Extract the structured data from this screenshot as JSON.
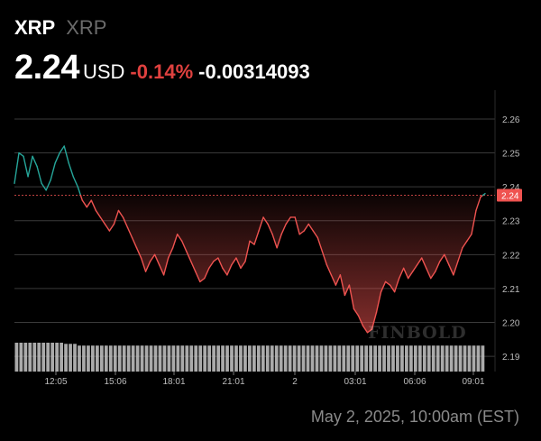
{
  "header": {
    "symbol": "XRP",
    "name": "XRP",
    "price": "2.24",
    "currency": "USD",
    "change_pct": "-0.14%",
    "change_abs": "-0.00314093"
  },
  "footer": {
    "timestamp": "May 2, 2025, 10:00am (EST)",
    "watermark": "FINBOLD"
  },
  "colors": {
    "up": "#26a69a",
    "down": "#ef5350",
    "grid": "#3a3a3a",
    "volume": "#c8c8c8"
  },
  "chart_data": {
    "type": "line",
    "x_ticks": [
      "12:05",
      "15:06",
      "18:01",
      "21:01",
      "2",
      "03:01",
      "06:06",
      "09:01"
    ],
    "y_ticks": [
      "2.26",
      "2.25",
      "2.24",
      "2.23",
      "2.22",
      "2.21",
      "2.20",
      "2.19"
    ],
    "ylim": [
      2.1855,
      2.2685
    ],
    "reference_value": 2.2375,
    "current_label": "2.24",
    "series": [
      {
        "values": [
          2.241,
          2.25,
          2.249,
          2.243,
          2.249,
          2.246,
          2.241,
          2.239,
          2.242,
          2.247,
          2.25,
          2.252,
          2.247,
          2.243,
          2.24,
          2.236,
          2.234,
          2.236,
          2.233,
          2.231,
          2.229,
          2.227,
          2.229,
          2.233,
          2.231,
          2.228,
          2.225,
          2.222,
          2.219,
          2.215,
          2.218,
          2.22,
          2.217,
          2.214,
          2.219,
          2.222,
          2.226,
          2.224,
          2.221,
          2.218,
          2.215,
          2.212,
          2.213,
          2.216,
          2.218,
          2.219,
          2.216,
          2.214,
          2.217,
          2.219,
          2.216,
          2.218,
          2.224,
          2.223,
          2.227,
          2.231,
          2.229,
          2.226,
          2.222,
          2.226,
          2.229,
          2.231,
          2.231,
          2.226,
          2.227,
          2.229,
          2.227,
          2.225,
          2.221,
          2.217,
          2.214,
          2.211,
          2.214,
          2.208,
          2.211,
          2.204,
          2.202,
          2.199,
          2.197,
          2.198,
          2.203,
          2.209,
          2.212,
          2.211,
          2.209,
          2.213,
          2.216,
          2.213,
          2.215,
          2.217,
          2.219,
          2.216,
          2.213,
          2.215,
          2.218,
          2.22,
          2.217,
          2.214,
          2.218,
          2.222,
          2.224,
          2.226,
          2.233,
          2.237,
          2.238
        ]
      }
    ],
    "volume": [
      5,
      5,
      5,
      5,
      5,
      5,
      5,
      5,
      5,
      5,
      5,
      4.8,
      4.8,
      4.8,
      4.5,
      4.5,
      4.5,
      4.5,
      4.5,
      4.5,
      4.5,
      4.5,
      4.5,
      4.5,
      4.5,
      4.5,
      4.5,
      4.5,
      4.5,
      4.5,
      4.5,
      4.5,
      4.5,
      4.5,
      4.5,
      4.5,
      4.5,
      4.5,
      4.5,
      4.5,
      4.5,
      4.5,
      4.5,
      4.5,
      4.5,
      4.5,
      4.5,
      4.5,
      4.5,
      4.5,
      4.5,
      4.5,
      4.5,
      4.5,
      4.5,
      4.5,
      4.5,
      4.5,
      4.5,
      4.5,
      4.5,
      4.5,
      4.5,
      4.5,
      4.5,
      4.5,
      4.5,
      4.5,
      4.5,
      4.5,
      4.5,
      4.5,
      4.5,
      4.5,
      4.5,
      4.5,
      4.5,
      4.5,
      4.5,
      4.5,
      4.5,
      4.5,
      4.5,
      4.5,
      4.5,
      4.5,
      4.5,
      4.5,
      4.5,
      4.5,
      4.5,
      4.5,
      4.5,
      4.5,
      4.5,
      4.5,
      4.5,
      4.5,
      4.5,
      4.5,
      4.5,
      4.5,
      4.5,
      4.5,
      4.5
    ],
    "grid": true
  }
}
